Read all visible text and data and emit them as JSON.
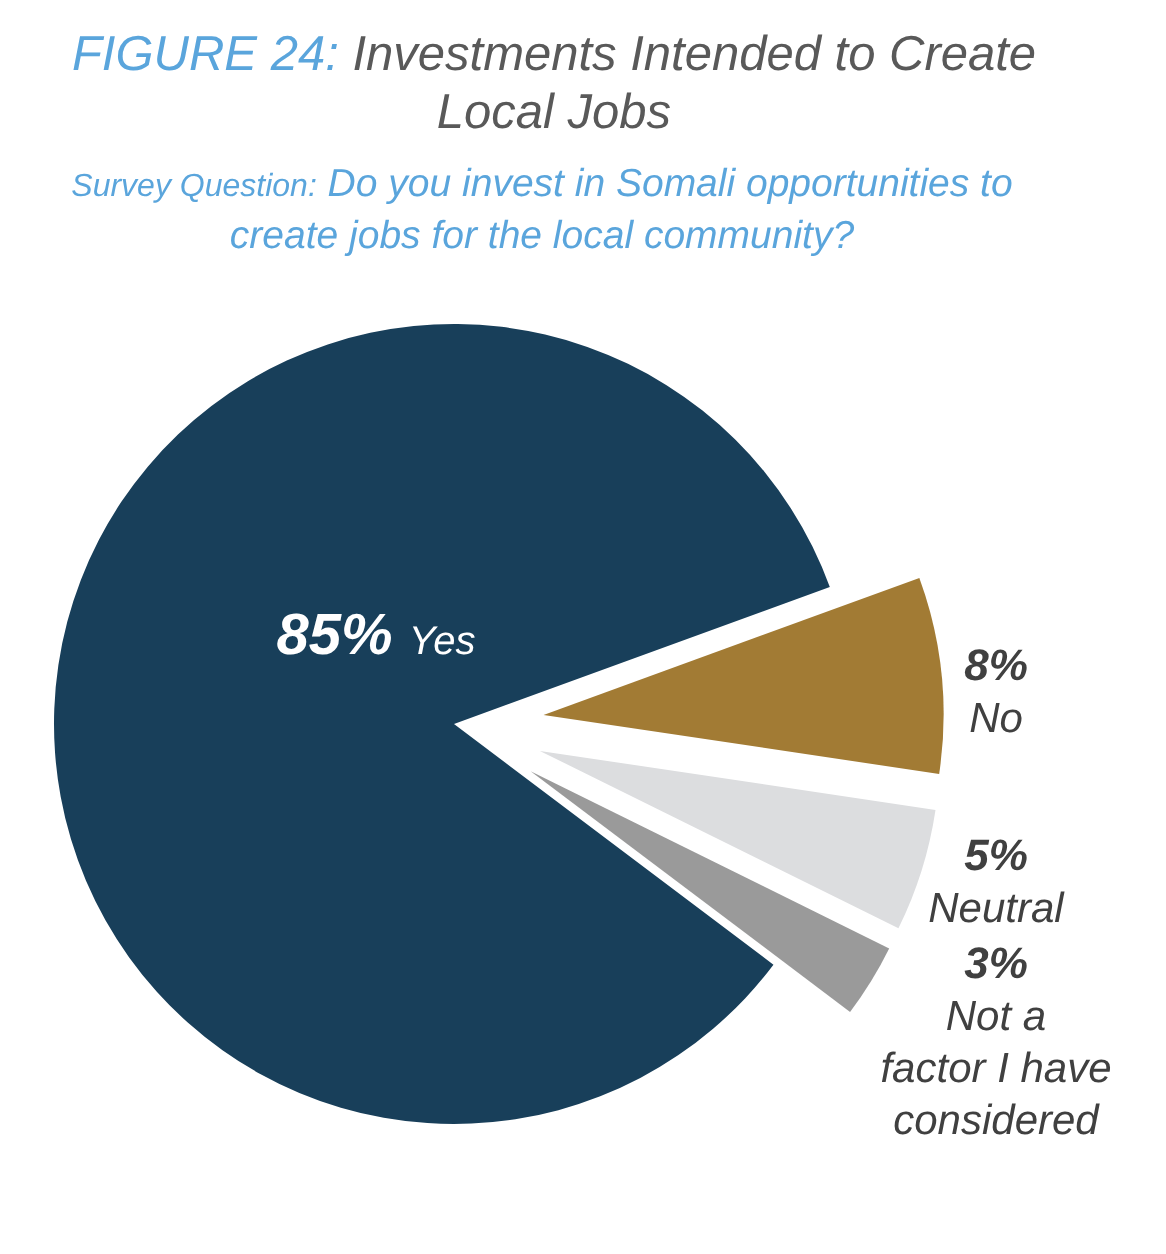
{
  "chart_data": {
    "type": "pie",
    "title": "FIGURE 24: Investments Intended to Create Local Jobs",
    "subtitle": "Survey Question: Do you invest in Somali opportunities to create jobs for the local community?",
    "categories": [
      "Yes",
      "No",
      "Neutral",
      "Not a factor I have considered"
    ],
    "values": [
      85,
      8,
      5,
      3
    ],
    "colors": [
      "#183f5a",
      "#a27b34",
      "#dcdddf",
      "#9a9a9a"
    ],
    "value_labels": [
      "85%",
      "8%",
      "5%",
      "3%"
    ]
  }
}
